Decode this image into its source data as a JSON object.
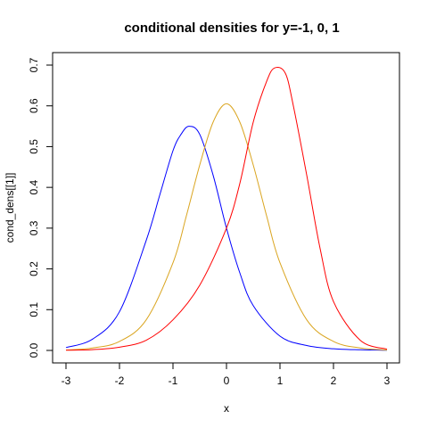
{
  "chart_data": {
    "type": "line",
    "title": "conditional densities for y=-1, 0, 1",
    "xlabel": "x",
    "ylabel": "cond_dens[[1]]",
    "xlim": [
      -3,
      3
    ],
    "ylim": [
      0,
      0.7
    ],
    "x_ticks": [
      "-3",
      "-2",
      "-1",
      "0",
      "1",
      "2",
      "3"
    ],
    "y_ticks": [
      "0.0",
      "0.1",
      "0.2",
      "0.3",
      "0.4",
      "0.5",
      "0.6",
      "0.7"
    ],
    "grid": false,
    "series": [
      {
        "color": "#0000ff",
        "x": [
          -3,
          -2.5,
          -2,
          -1.5,
          -1.25,
          -1,
          -0.85,
          -0.7,
          -0.5,
          -0.25,
          0,
          0.25,
          0.5,
          1,
          1.5,
          2,
          2.5,
          3
        ],
        "y": [
          0.007,
          0.028,
          0.095,
          0.27,
          0.38,
          0.49,
          0.53,
          0.55,
          0.53,
          0.43,
          0.3,
          0.19,
          0.11,
          0.035,
          0.012,
          0.004,
          0.0015,
          0.0005
        ]
      },
      {
        "color": "#daa520",
        "x": [
          -3,
          -2.5,
          -2,
          -1.5,
          -1,
          -0.75,
          -0.5,
          -0.25,
          0,
          0.25,
          0.5,
          0.75,
          1,
          1.5,
          2,
          2.5,
          3
        ],
        "y": [
          0.001,
          0.006,
          0.022,
          0.075,
          0.215,
          0.33,
          0.455,
          0.56,
          0.605,
          0.56,
          0.455,
          0.33,
          0.215,
          0.075,
          0.022,
          0.006,
          0.001
        ]
      },
      {
        "color": "#ff0000",
        "x": [
          -3,
          -2.5,
          -2,
          -1.5,
          -1,
          -0.5,
          0,
          0.25,
          0.5,
          0.75,
          0.9,
          1.1,
          1.25,
          1.5,
          1.75,
          2,
          2.5,
          3
        ],
        "y": [
          0.0005,
          0.002,
          0.008,
          0.025,
          0.075,
          0.16,
          0.3,
          0.41,
          0.56,
          0.66,
          0.693,
          0.68,
          0.6,
          0.43,
          0.25,
          0.12,
          0.025,
          0.003
        ]
      }
    ]
  }
}
